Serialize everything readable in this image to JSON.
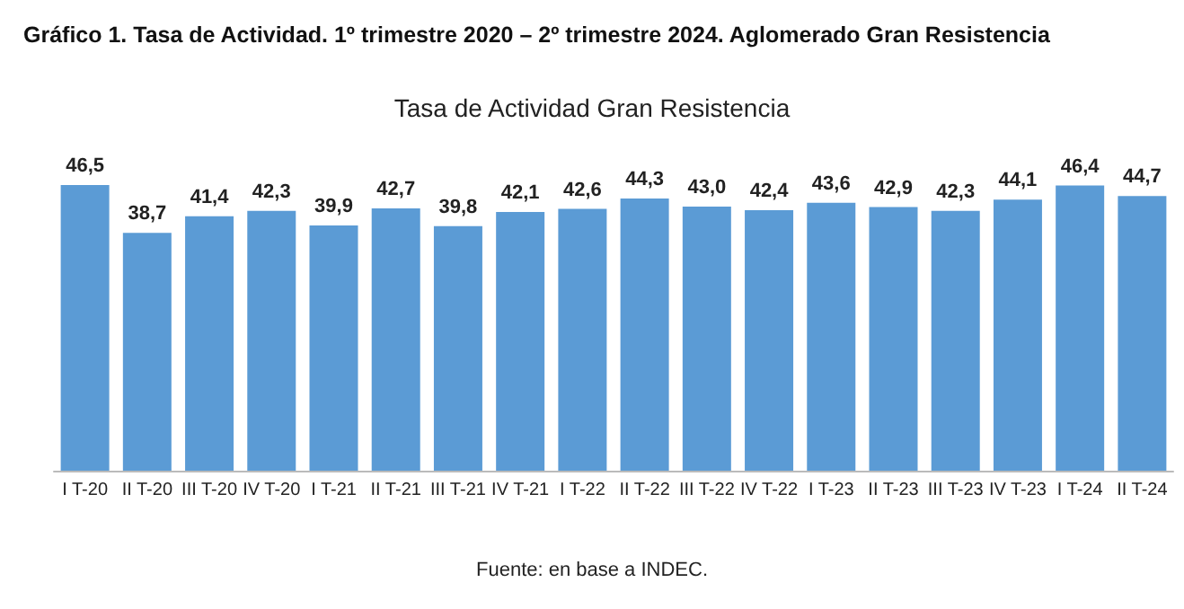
{
  "chart_data": {
    "type": "bar",
    "title": "Gráfico 1. Tasa de Actividad. 1º trimestre 2020 – 2º trimestre 2024. Aglomerado Gran Resistencia",
    "subtitle": "Tasa de Actividad Gran Resistencia",
    "categories": [
      "I T-20",
      "II T-20",
      "III T-20",
      "IV T-20",
      "I T-21",
      "II T-21",
      "III T-21",
      "IV T-21",
      "I T-22",
      "II T-22",
      "III T-22",
      "IV T-22",
      "I T-23",
      "II T-23",
      "III T-23",
      "IV T-23",
      "I T-24",
      "II T-24"
    ],
    "values": [
      46.5,
      38.7,
      41.4,
      42.3,
      39.9,
      42.7,
      39.8,
      42.1,
      42.6,
      44.3,
      43.0,
      42.4,
      43.6,
      42.9,
      42.3,
      44.1,
      46.4,
      44.7
    ],
    "value_labels": [
      "46,5",
      "38,7",
      "41,4",
      "42,3",
      "39,9",
      "42,7",
      "39,8",
      "42,1",
      "42,6",
      "44,3",
      "43,0",
      "42,4",
      "43,6",
      "42,9",
      "42,3",
      "44,1",
      "46,4",
      "44,7"
    ],
    "color": "#5b9bd5",
    "tick_labels": "x",
    "grid": false,
    "annotations": [
      "Fuente: en base a INDEC."
    ]
  }
}
